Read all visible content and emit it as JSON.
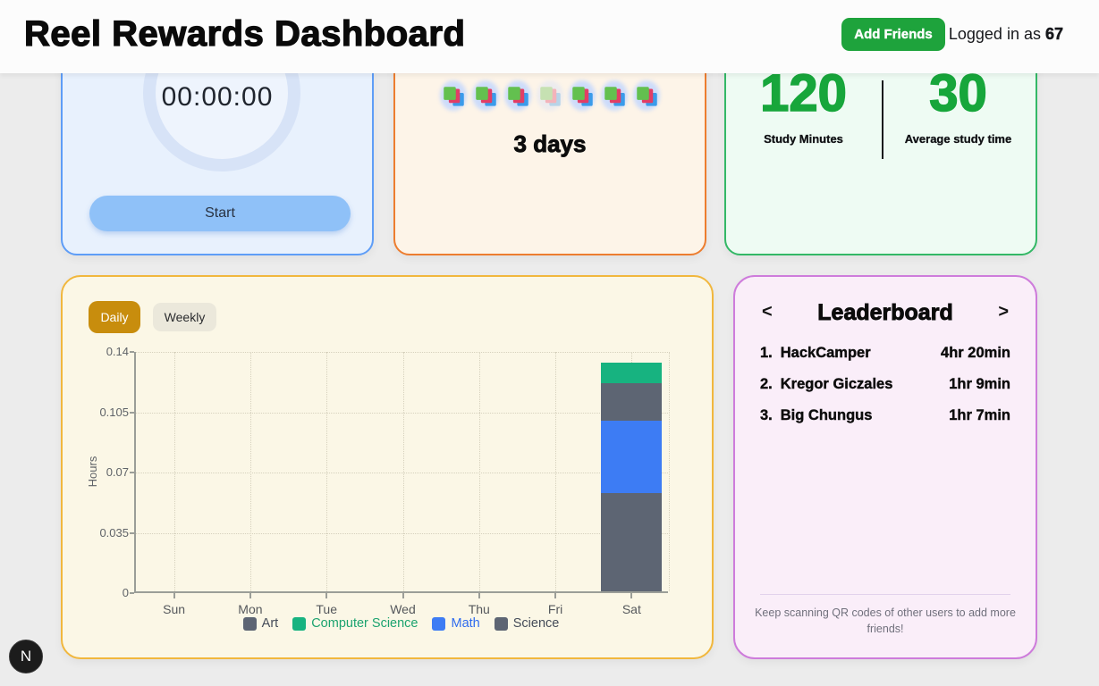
{
  "header": {
    "title": "Reel Rewards Dashboard",
    "add_friends_label": "Add Friends",
    "logged_in_prefix": "Logged in as ",
    "logged_in_user": "67"
  },
  "timer_card": {
    "time": "00:00:00",
    "start_label": "Start"
  },
  "streak_card": {
    "days_text": "3 days",
    "icon_name": "books-icon",
    "icons_count": 7,
    "faded_icon_index": 3
  },
  "stats_card": {
    "study_minutes_value": "120",
    "study_minutes_label": "Study Minutes",
    "average_value": "30",
    "average_label": "Average study time"
  },
  "chart_card": {
    "daily_label": "Daily",
    "weekly_label": "Weekly",
    "active_tab": "Daily"
  },
  "chart_data": {
    "type": "bar",
    "stacked": true,
    "title": "",
    "xlabel": "",
    "ylabel": "Hours",
    "categories": [
      "Sun",
      "Mon",
      "Tue",
      "Wed",
      "Thu",
      "Fri",
      "Sat"
    ],
    "ylim": [
      0,
      0.14
    ],
    "yticks": [
      0,
      0.035,
      0.07,
      0.105,
      0.14
    ],
    "ytick_labels": [
      "0",
      "0.035",
      "0.07",
      "0.105",
      "0.14"
    ],
    "grid": "dotted",
    "legend_position": "bottom",
    "series": [
      {
        "name": "Art",
        "color": "#5d6573",
        "label_color": "#454c59",
        "values": [
          0,
          0,
          0,
          0,
          0,
          0,
          0.022
        ]
      },
      {
        "name": "Computer Science",
        "color": "#17b380",
        "label_color": "#1ca36f",
        "values": [
          0,
          0,
          0,
          0,
          0,
          0,
          0.012
        ]
      },
      {
        "name": "Math",
        "color": "#3d7cf4",
        "label_color": "#2f6bee",
        "values": [
          0,
          0,
          0,
          0,
          0,
          0,
          0.042
        ]
      },
      {
        "name": "Science",
        "color": "#5d6573",
        "label_color": "#454c59",
        "values": [
          0,
          0,
          0,
          0,
          0,
          0,
          0.057
        ]
      }
    ],
    "stack_order_bottom_to_top": [
      "Science",
      "Math",
      "Art",
      "Computer Science"
    ]
  },
  "leaderboard": {
    "title": "Leaderboard",
    "prev_arrow": "<",
    "next_arrow": ">",
    "entries": [
      {
        "rank": "1.",
        "name": "HackCamper",
        "time": "4hr 20min"
      },
      {
        "rank": "2.",
        "name": "Kregor Giczales",
        "time": "1hr 9min"
      },
      {
        "rank": "3.",
        "name": "Big Chungus",
        "time": "1hr 7min"
      }
    ],
    "footer_note": "Keep scanning QR codes of other users to add more friends!"
  },
  "dev_badge": {
    "label": "N"
  },
  "colors": {
    "page_bg": "#ececec",
    "header_bg": "#fcfcfc",
    "accent_green": "#1ea33c",
    "timer_border": "#5e9df7",
    "timer_bg": "#e8f1fd",
    "start_button_bg": "#8fc1f8",
    "streak_border": "#ed7d2f",
    "streak_bg": "#fdf4e8",
    "stats_border": "#33b866",
    "stats_bg": "#eefbf3",
    "stats_number_green": "#17a63b",
    "chart_card_border": "#f1b73d",
    "chart_card_bg": "#fbf7e6",
    "daily_active_bg": "#c88d0d",
    "weekly_bg": "#ebe8db",
    "leaderboard_border": "#ce7cdb",
    "leaderboard_bg": "#faeef9"
  }
}
